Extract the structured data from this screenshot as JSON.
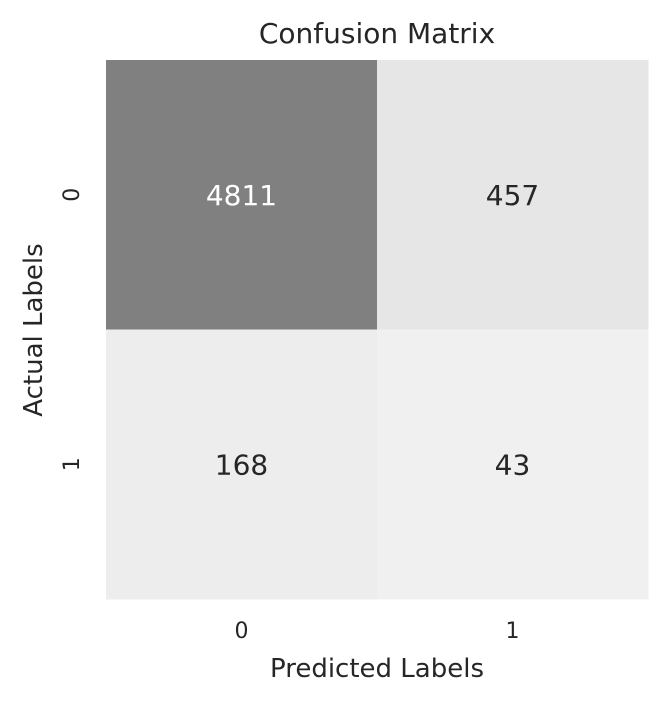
{
  "chart_data": {
    "type": "heatmap",
    "title": "Confusion Matrix",
    "xlabel": "Predicted Labels",
    "ylabel": "Actual Labels",
    "x_categories": [
      "0",
      "1"
    ],
    "y_categories": [
      "0",
      "1"
    ],
    "values": [
      [
        4811,
        457
      ],
      [
        168,
        43
      ]
    ],
    "colorbar": false,
    "colormap": [
      "#f0f0f0",
      "#808080"
    ]
  }
}
